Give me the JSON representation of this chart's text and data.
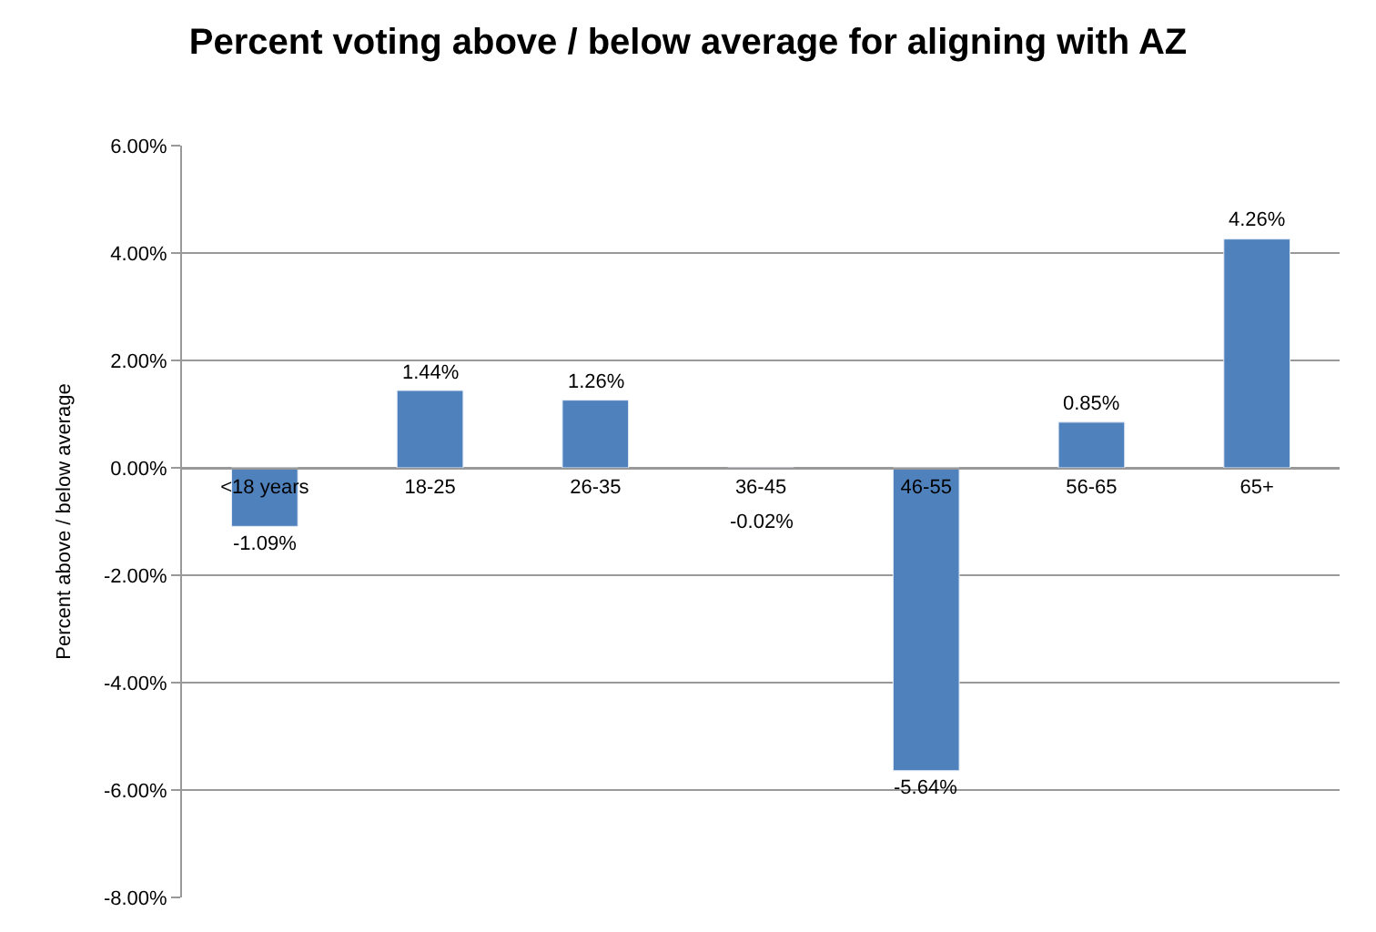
{
  "chart_data": {
    "type": "bar",
    "title": "Percent voting above / below average for aligning with AZ",
    "ylabel": "Percent above / below average",
    "categories": [
      "<18 years",
      "18-25",
      "26-35",
      "36-45",
      "46-55",
      "56-65",
      "65+"
    ],
    "values": [
      -1.09,
      1.44,
      1.26,
      -0.02,
      -5.64,
      0.85,
      4.26
    ],
    "value_labels": [
      "-1.09%",
      "1.44%",
      "1.26%",
      "-0.02%",
      "-5.64%",
      "0.85%",
      "4.26%"
    ],
    "color": "#4f81bd",
    "ylim": [
      -8,
      6
    ],
    "yticks": [
      {
        "value": -8,
        "label": "-8.00%"
      },
      {
        "value": -6,
        "label": "-6.00%"
      },
      {
        "value": -4,
        "label": "-4.00%"
      },
      {
        "value": -2,
        "label": "-2.00%"
      },
      {
        "value": 0,
        "label": "0.00%"
      },
      {
        "value": 2,
        "label": "2.00%"
      },
      {
        "value": 4,
        "label": "4.00%"
      },
      {
        "value": 6,
        "label": "6.00%"
      }
    ],
    "grid": "y"
  }
}
